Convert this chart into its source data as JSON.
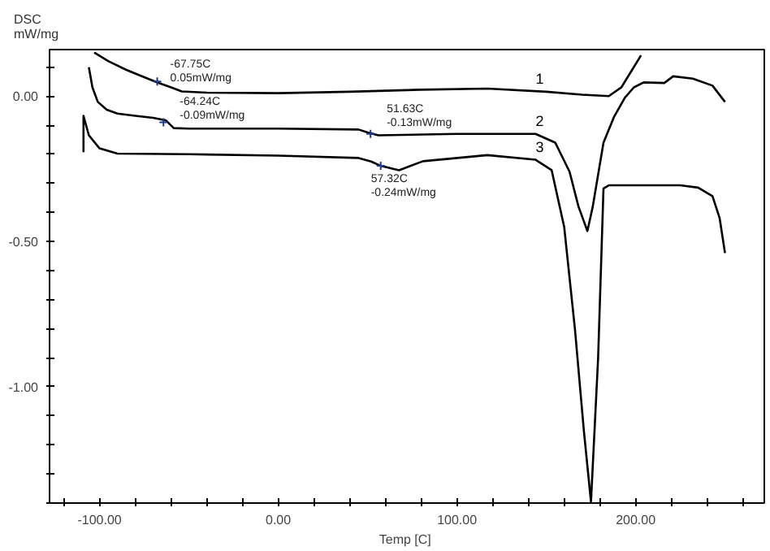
{
  "chart_data": {
    "type": "line",
    "xlabel": "Temp  [C]",
    "ylabel": "DSC\nmW/mg",
    "xlim": [
      -128,
      272
    ],
    "ylim": [
      -1.4,
      0.16
    ],
    "xticks": [
      {
        "value": -120,
        "label": null
      },
      {
        "value": -100,
        "label": "-100.00"
      },
      {
        "value": -80,
        "label": null
      },
      {
        "value": -60,
        "label": null
      },
      {
        "value": -40,
        "label": null
      },
      {
        "value": -20,
        "label": null
      },
      {
        "value": 0,
        "label": "0.00"
      },
      {
        "value": 20,
        "label": null
      },
      {
        "value": 40,
        "label": null
      },
      {
        "value": 60,
        "label": null
      },
      {
        "value": 80,
        "label": null
      },
      {
        "value": 100,
        "label": "100.00"
      },
      {
        "value": 120,
        "label": null
      },
      {
        "value": 140,
        "label": null
      },
      {
        "value": 160,
        "label": null
      },
      {
        "value": 180,
        "label": null
      },
      {
        "value": 200,
        "label": "200.00"
      },
      {
        "value": 220,
        "label": null
      },
      {
        "value": 240,
        "label": null
      },
      {
        "value": 260,
        "label": null
      }
    ],
    "yticks": [
      {
        "value": -1.4,
        "label": null
      },
      {
        "value": -1.3,
        "label": null
      },
      {
        "value": -1.2,
        "label": null
      },
      {
        "value": -1.1,
        "label": null
      },
      {
        "value": -1.0,
        "label": "-1.00"
      },
      {
        "value": -0.9,
        "label": null
      },
      {
        "value": -0.8,
        "label": null
      },
      {
        "value": -0.7,
        "label": null
      },
      {
        "value": -0.6,
        "label": null
      },
      {
        "value": -0.5,
        "label": "-0.50"
      },
      {
        "value": -0.4,
        "label": null
      },
      {
        "value": -0.3,
        "label": null
      },
      {
        "value": -0.2,
        "label": null
      },
      {
        "value": -0.1,
        "label": null
      },
      {
        "value": 0.0,
        "label": "0.00"
      },
      {
        "value": 0.1,
        "label": null
      }
    ],
    "grid": false,
    "marker": "none",
    "line_style": "solid",
    "series": [
      {
        "name": "1",
        "color": "#000000",
        "x": [
          -103,
          -95,
          -85,
          -75,
          -67.6,
          -60,
          -54,
          -40,
          0,
          40,
          80,
          117,
          150,
          170,
          185,
          192,
          198,
          203
        ],
        "values": [
          0.15,
          0.12,
          0.09,
          0.065,
          0.047,
          0.03,
          0.016,
          0.012,
          0.01,
          0.015,
          0.022,
          0.026,
          0.015,
          0.005,
          0.0,
          0.03,
          0.09,
          0.14
        ]
      },
      {
        "name": "2",
        "color": "#000000",
        "x": [
          -106,
          -104,
          -101,
          -96,
          -90,
          -80,
          -70,
          -63,
          -58.5,
          -50,
          0,
          45,
          50,
          56,
          100,
          144,
          155,
          163,
          168,
          173,
          176,
          182,
          188,
          194,
          199,
          204.5,
          216,
          221,
          232,
          243,
          250
        ],
        "values": [
          0.099,
          0.03,
          -0.02,
          -0.047,
          -0.06,
          -0.068,
          -0.075,
          -0.083,
          -0.11,
          -0.112,
          -0.112,
          -0.115,
          -0.125,
          -0.135,
          -0.13,
          -0.13,
          -0.16,
          -0.26,
          -0.38,
          -0.464,
          -0.38,
          -0.16,
          -0.07,
          -0.005,
          0.03,
          0.047,
          0.045,
          0.068,
          0.06,
          0.036,
          -0.02
        ]
      },
      {
        "name": "3",
        "color": "#000000",
        "x": [
          -109,
          -109,
          -106,
          -100,
          -90,
          -50,
          0,
          45,
          52,
          57.3,
          67.6,
          81,
          117,
          144,
          153,
          160,
          166,
          171,
          175,
          179,
          182,
          185,
          225,
          235,
          243,
          247,
          250
        ],
        "values": [
          -0.193,
          -0.068,
          -0.135,
          -0.18,
          -0.198,
          -0.2,
          -0.205,
          -0.213,
          -0.225,
          -0.24,
          -0.255,
          -0.224,
          -0.203,
          -0.219,
          -0.255,
          -0.45,
          -0.8,
          -1.15,
          -1.396,
          -0.9,
          -0.318,
          -0.307,
          -0.307,
          -0.315,
          -0.344,
          -0.42,
          -0.54
        ]
      }
    ],
    "annotations": [
      {
        "text": "-67.75C\n0.05mW/mg",
        "x": -67.75,
        "y": 0.05
      },
      {
        "text": "-64.24C\n-0.09mW/mg",
        "x": -64.24,
        "y": -0.09
      },
      {
        "text": "51.63C\n-0.13mW/mg",
        "x": 51.63,
        "y": -0.13
      },
      {
        "text": "57.32C\n-0.24mW/mg",
        "x": 57.32,
        "y": -0.24
      }
    ]
  }
}
